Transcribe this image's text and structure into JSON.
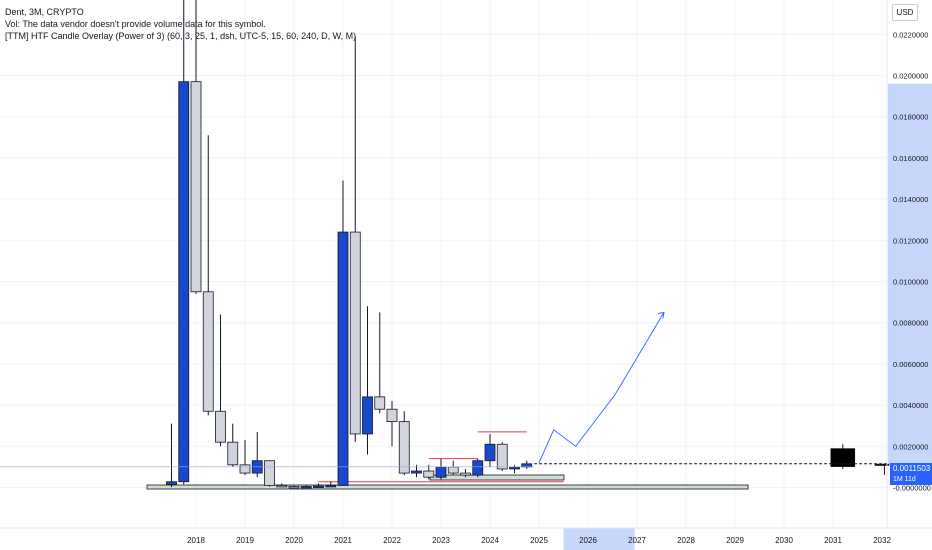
{
  "legend": {
    "line1": "Dent, 3M, CRYPTO",
    "line2": "Vol: The data vendor doesn't provide volume data for this symbol.",
    "line3": "[TTM] HTF Candle Overlay (Power of 3) (60, 3, 25, 1, dsh, UTC-5, 15, 60, 240, D, W, M)"
  },
  "currency": "USD",
  "price_label": {
    "value": "0.0011503",
    "countdown": "1M 11d"
  },
  "colors": {
    "up": "#1848cc",
    "down": "#d1d4dc",
    "border": "#131722",
    "arrow": "#2962ff",
    "highlight": "#c7d7fb",
    "red_line": "#e53950"
  },
  "chart_data": {
    "type": "candlestick",
    "title": "Dent, 3M, CRYPTO",
    "ylim": [
      -0.0002,
      0.0224
    ],
    "y_ticks": [
      "0.0220000",
      "0.0200000",
      "0.0180000",
      "0.0160000",
      "0.0140000",
      "0.0120000",
      "0.0100000",
      "0.0080000",
      "0.0060000",
      "0.0040000",
      "0.0020000",
      "0.0000000"
    ],
    "y_tick_values": [
      0.022,
      0.02,
      0.018,
      0.016,
      0.014,
      0.012,
      0.01,
      0.008,
      0.006,
      0.004,
      0.002,
      0.0
    ],
    "y_tick_last_label": "-0.0000000",
    "x_years": [
      "2018",
      "2019",
      "2020",
      "2021",
      "2022",
      "2023",
      "2024",
      "2025",
      "2026",
      "2027",
      "2028",
      "2029",
      "2030",
      "2031",
      "2032"
    ],
    "x_year_values": [
      2018,
      2019,
      2020,
      2021,
      2022,
      2023,
      2024,
      2025,
      2026,
      2027,
      2028,
      2029,
      2030,
      2031,
      2032
    ],
    "candles": [
      {
        "t": 2017.5,
        "o": 0.00015,
        "h": 0.0031,
        "l": 2e-05,
        "c": 0.00028
      },
      {
        "t": 2017.75,
        "o": 0.00028,
        "h": 0.028,
        "l": 0.00015,
        "c": 0.0197
      },
      {
        "t": 2018.0,
        "o": 0.0197,
        "h": 0.027,
        "l": 0.0094,
        "c": 0.0095
      },
      {
        "t": 2018.25,
        "o": 0.0095,
        "h": 0.0171,
        "l": 0.0035,
        "c": 0.0037
      },
      {
        "t": 2018.5,
        "o": 0.0037,
        "h": 0.0084,
        "l": 0.002,
        "c": 0.0022
      },
      {
        "t": 2018.75,
        "o": 0.0022,
        "h": 0.0031,
        "l": 0.001,
        "c": 0.0011
      },
      {
        "t": 2019.0,
        "o": 0.0011,
        "h": 0.0023,
        "l": 0.0006,
        "c": 0.0007
      },
      {
        "t": 2019.25,
        "o": 0.0007,
        "h": 0.0027,
        "l": 0.0005,
        "c": 0.0013
      },
      {
        "t": 2019.5,
        "o": 0.0013,
        "h": 0.0013,
        "l": 5e-05,
        "c": 0.0001
      },
      {
        "t": 2019.75,
        "o": 0.0001,
        "h": 0.0002,
        "l": 3e-05,
        "c": 5e-05
      },
      {
        "t": 2020.0,
        "o": 5e-05,
        "h": 0.0001,
        "l": 2e-05,
        "c": 3e-05
      },
      {
        "t": 2020.25,
        "o": 3e-05,
        "h": 0.0001,
        "l": 2e-05,
        "c": 5e-05
      },
      {
        "t": 2020.5,
        "o": 5e-05,
        "h": 0.0002,
        "l": 3e-05,
        "c": 7e-05
      },
      {
        "t": 2020.75,
        "o": 7e-05,
        "h": 0.0003,
        "l": 4e-05,
        "c": 0.0001
      },
      {
        "t": 2021.0,
        "o": 0.0001,
        "h": 0.0149,
        "l": 8e-05,
        "c": 0.0124
      },
      {
        "t": 2021.25,
        "o": 0.0124,
        "h": 0.0219,
        "l": 0.0022,
        "c": 0.0026
      },
      {
        "t": 2021.5,
        "o": 0.0026,
        "h": 0.0088,
        "l": 0.0016,
        "c": 0.0044
      },
      {
        "t": 2021.75,
        "o": 0.0044,
        "h": 0.0085,
        "l": 0.0036,
        "c": 0.0038
      },
      {
        "t": 2022.0,
        "o": 0.0038,
        "h": 0.0042,
        "l": 0.002,
        "c": 0.0032
      },
      {
        "t": 2022.25,
        "o": 0.0032,
        "h": 0.0037,
        "l": 0.0006,
        "c": 0.0007
      },
      {
        "t": 2022.5,
        "o": 0.0007,
        "h": 0.0011,
        "l": 0.0005,
        "c": 0.0008
      },
      {
        "t": 2022.75,
        "o": 0.0008,
        "h": 0.0011,
        "l": 0.0004,
        "c": 0.0005
      },
      {
        "t": 2023.0,
        "o": 0.0005,
        "h": 0.0014,
        "l": 0.0004,
        "c": 0.001
      },
      {
        "t": 2023.25,
        "o": 0.001,
        "h": 0.0013,
        "l": 0.0006,
        "c": 0.0007
      },
      {
        "t": 2023.5,
        "o": 0.0007,
        "h": 0.0009,
        "l": 0.0005,
        "c": 0.0006
      },
      {
        "t": 2023.75,
        "o": 0.0006,
        "h": 0.0014,
        "l": 0.0005,
        "c": 0.0013
      },
      {
        "t": 2024.0,
        "o": 0.0013,
        "h": 0.0026,
        "l": 0.001,
        "c": 0.0021
      },
      {
        "t": 2024.25,
        "o": 0.0021,
        "h": 0.0022,
        "l": 0.0008,
        "c": 0.0009
      },
      {
        "t": 2024.5,
        "o": 0.0009,
        "h": 0.0011,
        "l": 0.0007,
        "c": 0.001
      },
      {
        "t": 2024.75,
        "o": 0.001,
        "h": 0.0013,
        "l": 0.0009,
        "c": 0.00115
      }
    ],
    "projection_path": [
      {
        "t": 2025.0,
        "v": 0.0012
      },
      {
        "t": 2025.3,
        "v": 0.0028
      },
      {
        "t": 2025.75,
        "v": 0.002
      },
      {
        "t": 2026.55,
        "v": 0.0045
      },
      {
        "t": 2027.55,
        "v": 0.0085
      }
    ],
    "overlay_candle": {
      "t0": 2030.95,
      "t1": 2031.45,
      "o": 0.0019,
      "c": 0.001,
      "h": 0.0021,
      "l": 0.0009
    },
    "overlay_mini_candles": {
      "t0": 2031.85,
      "t1": 2032.15,
      "v": 0.0011
    },
    "horizontal_levels": [
      {
        "t0": 2023.75,
        "t1": 2024.75,
        "v": 0.0027
      },
      {
        "t0": 2022.75,
        "t1": 2023.75,
        "v": 0.0014
      },
      {
        "t0": 2020.5,
        "t1": 2025.5,
        "v": 0.00028
      }
    ],
    "current_price": 0.0011503,
    "highlight_x_range": [
      2025.5,
      2026.95
    ]
  }
}
